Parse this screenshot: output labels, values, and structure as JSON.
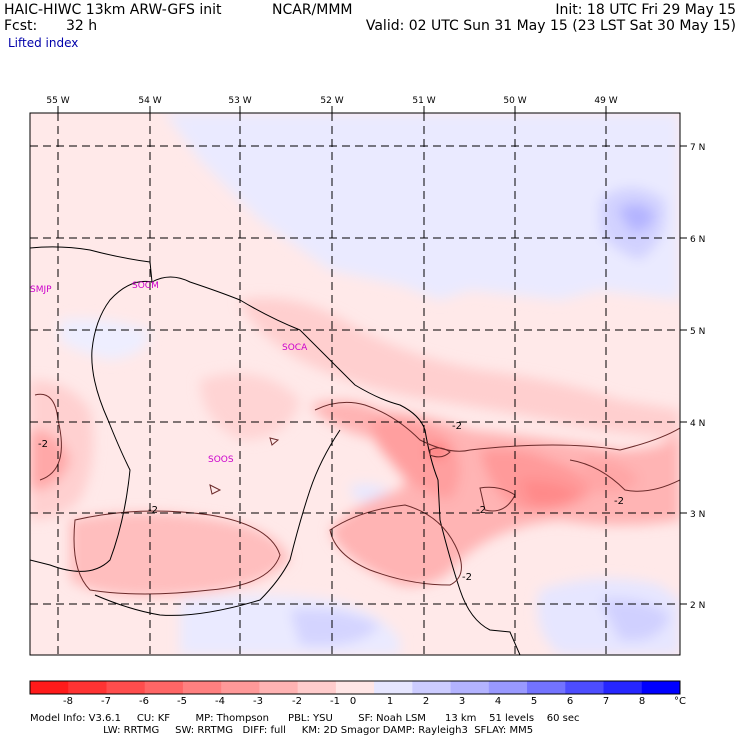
{
  "header": {
    "model": "HAIC-HIWC 13km ARW-GFS init",
    "org": "NCAR/MMM",
    "fcst_label": "Fcst:",
    "fcst_value": "32 h",
    "init": "Init: 18 UTC Fri 29 May 15",
    "valid": "Valid: 02 UTC Sun 31 May 15 (23 LST Sat 30 May 15)",
    "field": "Lifted index"
  },
  "map": {
    "lon_labels": [
      "55 W",
      "54 W",
      "53 W",
      "52 W",
      "51 W",
      "50 W",
      "49 W"
    ],
    "lat_labels": [
      "7 N",
      "6 N",
      "5 N",
      "4 N",
      "3 N",
      "2 N"
    ],
    "stations": [
      "SMJP",
      "SOCM",
      "SOCA",
      "SOOS"
    ],
    "contour_label": "-2"
  },
  "colorbar": {
    "ticks": [
      "-8",
      "-7",
      "-6",
      "-5",
      "-4",
      "-3",
      "-2",
      "-1",
      "0",
      "1",
      "2",
      "3",
      "4",
      "5",
      "6",
      "7",
      "8"
    ],
    "unit": "°C",
    "colors": [
      "#ff1a1a",
      "#ff3333",
      "#ff4d4d",
      "#ff6666",
      "#ff8080",
      "#ff9999",
      "#ffb3b3",
      "#ffcccc",
      "#ffe6e6",
      "#e6e6ff",
      "#ccccff",
      "#b3b3ff",
      "#9999ff",
      "#7373ff",
      "#4d4dff",
      "#2626ff",
      "#0000ff"
    ]
  },
  "model_info": {
    "line1": "Model Info: V3.6.1     CU: KF        MP: Thompson      PBL: YSU        SF: Noah LSM      13 km    51 levels    60 sec",
    "line2": "                       LW: RRTMG     SW: RRTMG   DIFF: full     KM: 2D Smagor DAMP: Rayleigh3  SFLAY: MM5"
  }
}
